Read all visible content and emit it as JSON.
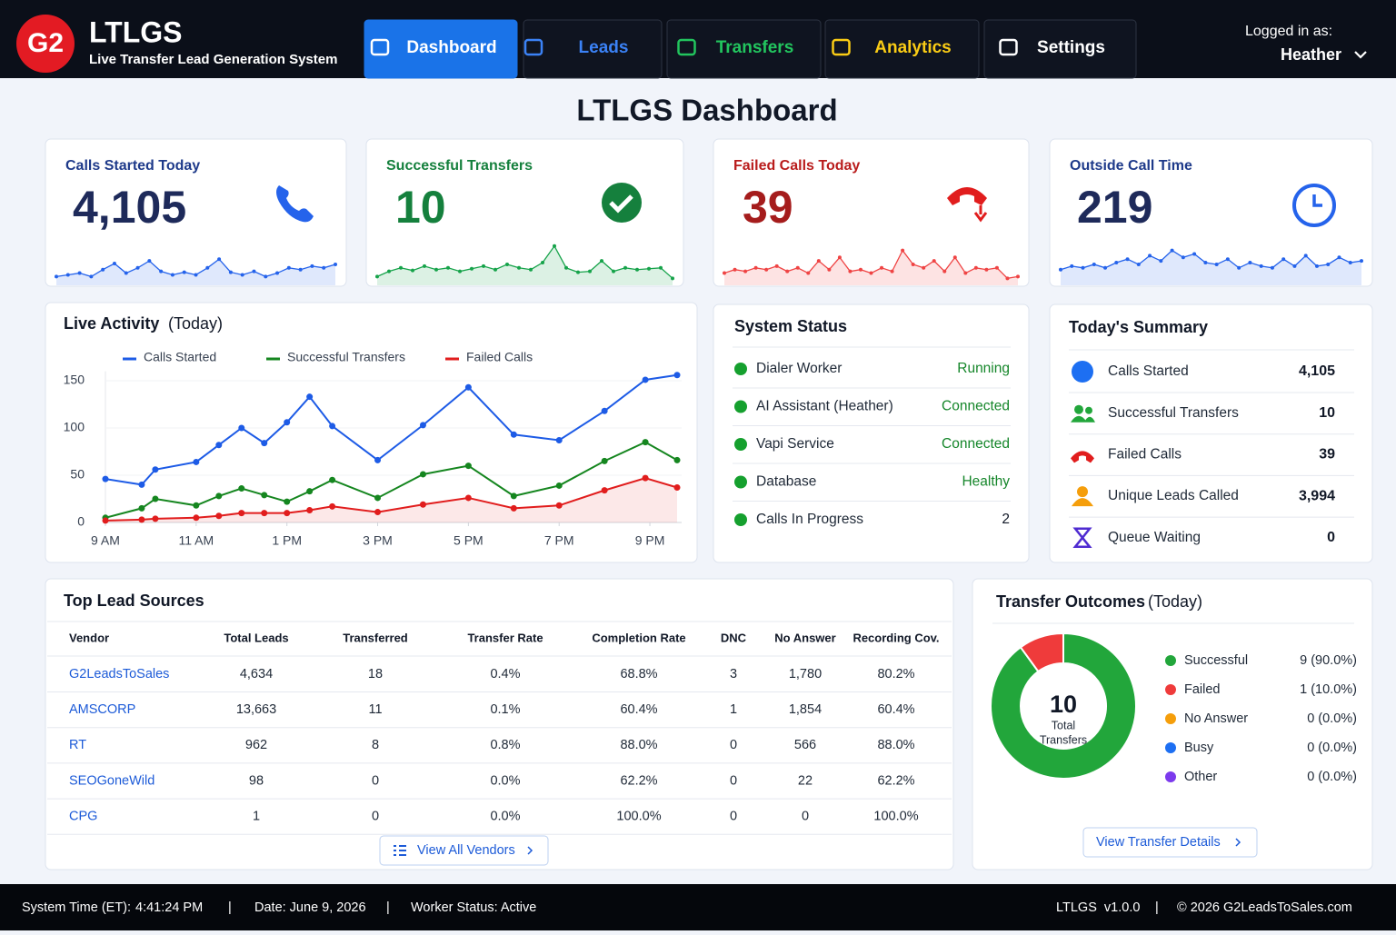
{
  "header": {
    "logo": "G2",
    "app_name": "LTLGS",
    "subtitle": "Live Transfer Lead Generation System",
    "nav": [
      {
        "label": "Dashboard",
        "color": "#ffffff"
      },
      {
        "label": "Leads",
        "color": "#3b82f6"
      },
      {
        "label": "Transfers",
        "color": "#22c55e"
      },
      {
        "label": "Analytics",
        "color": "#facc15"
      },
      {
        "label": "Settings",
        "color": "#ffffff"
      }
    ],
    "user_label": "Logged in as:",
    "user_name": "Heather"
  },
  "page_title": "LTLGS Dashboard",
  "kpis": [
    {
      "label": "Calls Started Today",
      "value": "4,105",
      "label_color": "#1e3a8a",
      "value_color": "#1e2a5a",
      "color": "#2563eb",
      "sparkline_ylim": [
        0,
        50
      ],
      "sparkline": [
        10,
        12,
        14,
        10,
        18,
        25,
        14,
        20,
        28,
        16,
        12,
        15,
        12,
        20,
        30,
        15,
        12,
        16,
        10,
        14,
        20,
        18,
        22,
        20,
        24
      ]
    },
    {
      "label": "Successful Transfers",
      "value": "10",
      "label_color": "#15803d",
      "value_color": "#15803d",
      "color": "#16a34a",
      "sparkline_ylim": [
        0,
        50
      ],
      "sparkline": [
        10,
        16,
        20,
        17,
        22,
        18,
        20,
        16,
        19,
        22,
        18,
        24,
        20,
        18,
        26,
        45,
        20,
        15,
        16,
        28,
        16,
        20,
        18,
        19,
        20,
        8
      ]
    },
    {
      "label": "Failed Calls Today",
      "value": "39",
      "label_color": "#b91c1c",
      "value_color": "#a51c1c",
      "color": "#ef4444",
      "sparkline_ylim": [
        0,
        50
      ],
      "sparkline": [
        14,
        18,
        16,
        20,
        18,
        22,
        16,
        20,
        14,
        28,
        18,
        32,
        16,
        18,
        14,
        20,
        16,
        40,
        24,
        20,
        28,
        16,
        32,
        14,
        20,
        18,
        20,
        8,
        10
      ]
    },
    {
      "label": "Outside Call Time",
      "value": "219",
      "label_color": "#1e3a8a",
      "value_color": "#1e2a5a",
      "color": "#2563eb",
      "sparkline_ylim": [
        0,
        50
      ],
      "sparkline": [
        18,
        22,
        20,
        24,
        20,
        26,
        30,
        24,
        34,
        28,
        40,
        32,
        36,
        26,
        24,
        30,
        20,
        26,
        22,
        20,
        30,
        22,
        34,
        22,
        24,
        32,
        26,
        28
      ]
    }
  ],
  "live_activity": {
    "type": "line",
    "title": "Live Activity",
    "title_suffix": "(Today)",
    "x": [
      9,
      9.8,
      10.1,
      11,
      11.5,
      12,
      12.5,
      13,
      13.5,
      14,
      15,
      16,
      17,
      18,
      19,
      20,
      20.9,
      21.6
    ],
    "xlim": [
      8.9,
      21.8
    ],
    "xticks": [
      {
        "value": 9,
        "label": "9 AM"
      },
      {
        "value": 11,
        "label": "11 AM"
      },
      {
        "value": 13,
        "label": "1 PM"
      },
      {
        "value": 15,
        "label": "3 PM"
      },
      {
        "value": 17,
        "label": "5 PM"
      },
      {
        "value": 19,
        "label": "7 PM"
      },
      {
        "value": 21,
        "label": "9 PM"
      }
    ],
    "ylim": [
      0,
      160
    ],
    "yticks": [
      0,
      50,
      100,
      150
    ],
    "series": [
      {
        "name": "Calls Started",
        "color": "#1d5be6",
        "area": false,
        "values": [
          46,
          40,
          56,
          64,
          82,
          100,
          84,
          106,
          133,
          102,
          66,
          103,
          143,
          93,
          87,
          118,
          151,
          156
        ]
      },
      {
        "name": "Successful Transfers",
        "color": "#15861f",
        "area": false,
        "values": [
          5,
          15,
          25,
          18,
          28,
          36,
          29,
          22,
          33,
          45,
          26,
          51,
          60,
          28,
          39,
          65,
          85,
          66
        ]
      },
      {
        "name": "Failed Calls",
        "color": "#e11d1d",
        "area": true,
        "values": [
          2,
          3,
          4,
          5,
          7,
          10,
          10,
          10,
          13,
          17,
          11,
          19,
          26,
          15,
          18,
          34,
          47,
          37
        ]
      }
    ]
  },
  "system_status": {
    "title": "System Status",
    "rows": [
      {
        "label": "Dialer Worker",
        "status": "Running"
      },
      {
        "label": "AI Assistant (Heather)",
        "status": "Connected"
      },
      {
        "label": "Vapi Service",
        "status": "Connected"
      },
      {
        "label": "Database",
        "status": "Healthy"
      },
      {
        "label": "Calls In Progress",
        "status": "2"
      }
    ]
  },
  "summary": {
    "title": "Today's Summary",
    "rows": [
      {
        "label": "Calls Started",
        "value": "4,105"
      },
      {
        "label": "Successful Transfers",
        "value": "10"
      },
      {
        "label": "Failed Calls",
        "value": "39"
      },
      {
        "label": "Unique Leads Called",
        "value": "3,994"
      },
      {
        "label": "Queue Waiting",
        "value": "0"
      }
    ]
  },
  "lead_sources": {
    "title": "Top Lead Sources",
    "columns": [
      "Vendor",
      "Total Leads",
      "Transferred",
      "Transfer Rate",
      "Completion Rate",
      "DNC",
      "No Answer",
      "Recording Cov."
    ],
    "rows": [
      [
        "G2LeadsToSales",
        "4,634",
        "18",
        "0.4%",
        "68.8%",
        "3",
        "1,780",
        "80.2%"
      ],
      [
        "AMSCORP",
        "13,663",
        "11",
        "0.1%",
        "60.4%",
        "1",
        "1,854",
        "60.4%"
      ],
      [
        "RT",
        "962",
        "8",
        "0.8%",
        "88.0%",
        "0",
        "566",
        "88.0%"
      ],
      [
        "SEOGoneWild",
        "98",
        "0",
        "0.0%",
        "62.2%",
        "0",
        "22",
        "62.2%"
      ],
      [
        "CPG",
        "1",
        "0",
        "0.0%",
        "100.0%",
        "0",
        "0",
        "100.0%"
      ]
    ],
    "button": "View All Vendors"
  },
  "transfer_outcomes": {
    "type": "donut",
    "title": "Transfer Outcomes",
    "title_suffix": "(Today)",
    "total": "10",
    "total_label_1": "Total",
    "total_label_2": "Transfers",
    "items": [
      {
        "name": "Successful",
        "color": "#22a63b",
        "value": 9,
        "value_label": "9 (90.0%)"
      },
      {
        "name": "Failed",
        "color": "#ef3b3b",
        "value": 1,
        "value_label": "1 (10.0%)"
      },
      {
        "name": "No Answer",
        "color": "#f59e0b",
        "value": 0,
        "value_label": "0 (0.0%)"
      },
      {
        "name": "Busy",
        "color": "#1d6ff2",
        "value": 0,
        "value_label": "0 (0.0%)"
      },
      {
        "name": "Other",
        "color": "#7c3aed",
        "value": 0,
        "value_label": "0 (0.0%)"
      }
    ],
    "button": "View Transfer Details"
  },
  "footer": {
    "time_label": "System Time (ET):",
    "time": "4:41:24 PM",
    "date": "Date: June 9, 2026",
    "worker": "Worker Status: Active",
    "version": "LTLGS  v1.0.0",
    "copyright": "© 2026 G2LeadsToSales.com"
  }
}
